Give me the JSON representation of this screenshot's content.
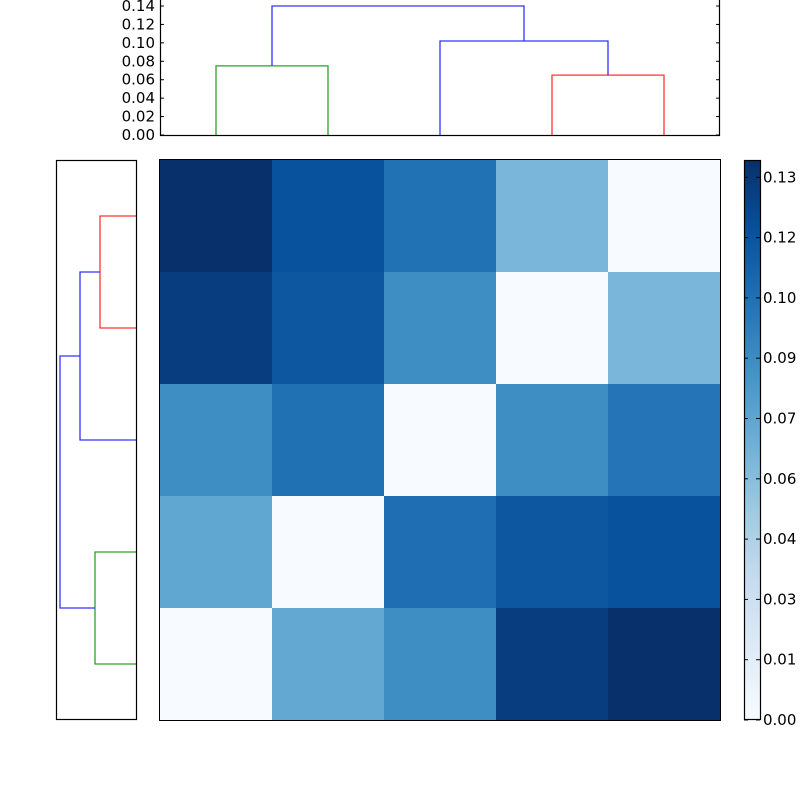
{
  "chart_data": [
    {
      "type": "dendrogram",
      "name": "top-dendrogram",
      "orientation": "top",
      "ylim": [
        0.0,
        0.14
      ],
      "yticks": [
        "0.00",
        "0.02",
        "0.04",
        "0.06",
        "0.08",
        "0.10",
        "0.12",
        "0.14"
      ],
      "leaves": 5,
      "links": [
        {
          "left": 0,
          "right": 1,
          "height": 0.075,
          "color": "#2ca02c"
        },
        {
          "left": 3,
          "right": 4,
          "height": 0.065,
          "color": "#ff3333"
        },
        {
          "left": 2,
          "right": "3-4",
          "height": 0.102,
          "color": "#3333ff"
        },
        {
          "left": "0-1",
          "right": "2-3-4",
          "height": 0.14,
          "color": "#3333ff"
        }
      ]
    },
    {
      "type": "dendrogram",
      "name": "left-dendrogram",
      "orientation": "left",
      "leaves": 5,
      "links": [
        {
          "top": 0,
          "bottom": 1,
          "color": "#ff3333"
        },
        {
          "top": "0-1",
          "bottom": 2,
          "color": "#3333ff"
        },
        {
          "top": 3,
          "bottom": 4,
          "color": "#2ca02c"
        },
        {
          "top": "0-1-2",
          "bottom": "3-4",
          "color": "#3333ff"
        }
      ]
    },
    {
      "type": "heatmap",
      "name": "distance-matrix",
      "colormap": "Blues",
      "rows": 5,
      "cols": 5,
      "values": [
        [
          0.133,
          0.115,
          0.09,
          0.055,
          0.0
        ],
        [
          0.125,
          0.11,
          0.075,
          0.0,
          0.055
        ],
        [
          0.075,
          0.09,
          0.0,
          0.075,
          0.088
        ],
        [
          0.065,
          0.0,
          0.09,
          0.11,
          0.115
        ],
        [
          0.0,
          0.065,
          0.075,
          0.125,
          0.133
        ]
      ],
      "colors": [
        [
          "#08306b",
          "#08519c",
          "#2171b5",
          "#7ab6d9",
          "#f7fbff"
        ],
        [
          "#083d7f",
          "#0d57a1",
          "#3e8ec4",
          "#f7fbff",
          "#7ab6d9"
        ],
        [
          "#3e8ec4",
          "#2070b4",
          "#f7fbff",
          "#3e8ec4",
          "#2474b7"
        ],
        [
          "#60a7d2",
          "#f7fbff",
          "#1f6eb3",
          "#0d57a1",
          "#08519c"
        ],
        [
          "#f7fbff",
          "#62a8d3",
          "#3e8ec4",
          "#083d7f",
          "#08306b"
        ]
      ]
    },
    {
      "type": "colorbar",
      "name": "colorbar",
      "colormap": "Blues",
      "range": [
        0.0,
        0.1335
      ],
      "ticks": [
        "0.00",
        "0.01",
        "0.03",
        "0.04",
        "0.06",
        "0.07",
        "0.09",
        "0.10",
        "0.12",
        "0.13"
      ]
    }
  ],
  "colors": {
    "green": "#2ca02c",
    "red": "#ff3333",
    "blue": "#3333ff",
    "axis": "#000000"
  }
}
